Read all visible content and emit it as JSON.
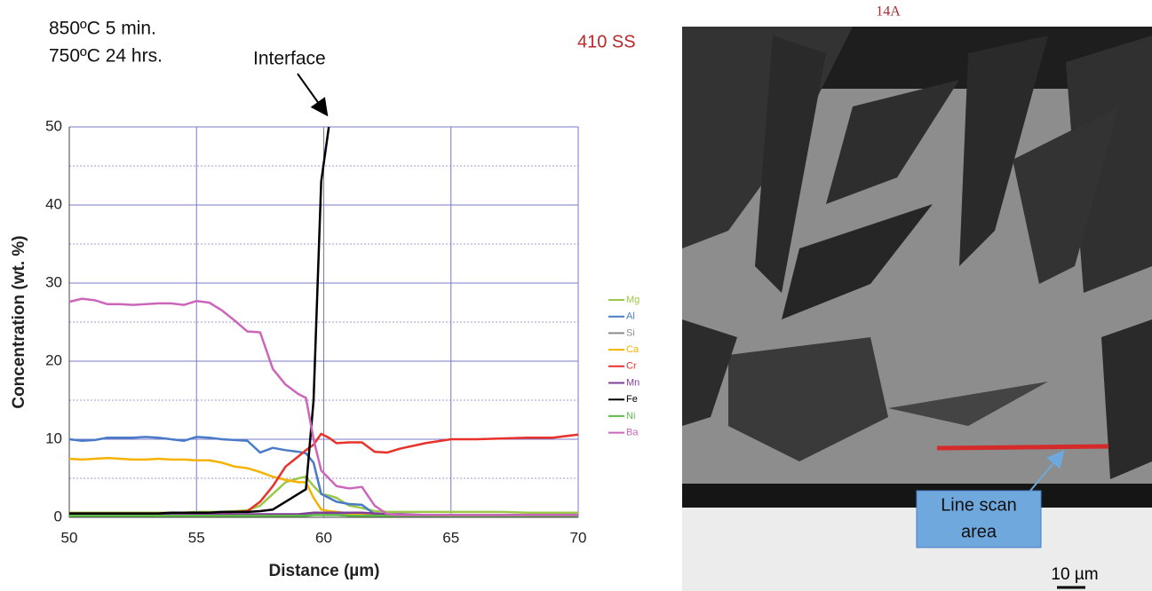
{
  "chart_data": {
    "type": "line",
    "annotations": [
      "850ºC 5 min.",
      "750ºC 24 hrs.",
      "Interface"
    ],
    "xlabel": "Distance (µm)",
    "ylabel": "Concentration (wt. %)",
    "x": [
      50,
      50.5,
      51,
      51.5,
      52,
      52.5,
      53,
      53.5,
      54,
      54.5,
      55,
      55.5,
      56,
      56.5,
      57,
      57.5,
      58,
      58.5,
      59,
      59.3,
      59.6,
      59.9,
      60.2,
      60.5,
      61,
      61.5,
      62,
      62.5,
      63,
      64,
      65,
      66,
      67,
      68,
      69,
      70
    ],
    "xlim": [
      50,
      70
    ],
    "xticks": [
      50,
      55,
      60,
      65,
      70
    ],
    "ylim": [
      0,
      50
    ],
    "yticks": [
      0,
      10,
      20,
      30,
      40,
      50
    ],
    "y_minor_grid": [
      5,
      15,
      25,
      35,
      45
    ],
    "grid": true,
    "grid_color": "#7878c8",
    "legend": "right",
    "series": [
      {
        "name": "Mg",
        "color": "#9cc84a",
        "values": [
          0.6,
          0.6,
          0.6,
          0.6,
          0.6,
          0.6,
          0.6,
          0.6,
          0.6,
          0.6,
          0.7,
          0.7,
          0.7,
          0.8,
          0.9,
          1.5,
          3,
          4.5,
          5,
          5.2,
          4,
          3,
          2.8,
          2.5,
          1.5,
          1.2,
          0.8,
          0.7,
          0.7,
          0.7,
          0.7,
          0.7,
          0.7,
          0.6,
          0.6,
          0.6
        ]
      },
      {
        "name": "Al",
        "color": "#4a7bc8",
        "values": [
          10,
          9.8,
          9.9,
          10.2,
          10.2,
          10.2,
          10.3,
          10.2,
          10,
          9.8,
          10.3,
          10.2,
          10,
          9.9,
          9.8,
          8.3,
          8.9,
          8.6,
          8.4,
          8.2,
          7,
          3,
          2.5,
          2,
          1.7,
          1.6,
          0.4,
          0.3,
          0.2,
          0.2,
          0.2,
          0.2,
          0.2,
          0.2,
          0.2,
          0.2
        ]
      },
      {
        "name": "Si",
        "color": "#8c8c8c",
        "values": [
          0.3,
          0.3,
          0.3,
          0.3,
          0.3,
          0.3,
          0.3,
          0.3,
          0.3,
          0.3,
          0.3,
          0.3,
          0.3,
          0.3,
          0.3,
          0.3,
          0.3,
          0.3,
          0.3,
          0.3,
          0.5,
          0.6,
          0.5,
          0.5,
          0.4,
          0.3,
          0.3,
          0.3,
          0.3,
          0.3,
          0.3,
          0.3,
          0.3,
          0.3,
          0.3,
          0.3
        ]
      },
      {
        "name": "Ca",
        "color": "#f7b200",
        "values": [
          7.5,
          7.4,
          7.5,
          7.6,
          7.5,
          7.4,
          7.4,
          7.5,
          7.4,
          7.4,
          7.3,
          7.3,
          7,
          6.5,
          6.3,
          5.8,
          5.2,
          4.8,
          4.5,
          4.5,
          2.5,
          1,
          0.8,
          0.7,
          0.5,
          0.4,
          0.3,
          0.2,
          0.2,
          0.2,
          0.2,
          0.2,
          0.2,
          0.2,
          0.2,
          0.2
        ]
      },
      {
        "name": "Cr",
        "color": "#e8312a",
        "values": [
          0.5,
          0.5,
          0.5,
          0.5,
          0.5,
          0.5,
          0.5,
          0.5,
          0.5,
          0.5,
          0.6,
          0.6,
          0.6,
          0.7,
          0.8,
          2,
          4,
          6.5,
          7.8,
          8.6,
          9.3,
          10.7,
          10.2,
          9.5,
          9.6,
          9.6,
          8.4,
          8.3,
          8.8,
          9.5,
          10,
          10,
          10.1,
          10.2,
          10.2,
          10.6
        ]
      },
      {
        "name": "Mn",
        "color": "#7f3f98",
        "values": [
          0.4,
          0.4,
          0.4,
          0.4,
          0.4,
          0.4,
          0.4,
          0.4,
          0.4,
          0.4,
          0.4,
          0.4,
          0.4,
          0.4,
          0.4,
          0.4,
          0.4,
          0.4,
          0.4,
          0.5,
          0.6,
          0.6,
          0.6,
          0.6,
          0.6,
          0.6,
          0.5,
          0.4,
          0.4,
          0.3,
          0.3,
          0.3,
          0.3,
          0.3,
          0.3,
          0.3
        ]
      },
      {
        "name": "Fe",
        "color": "#000000",
        "values": [
          0.5,
          0.5,
          0.5,
          0.5,
          0.5,
          0.5,
          0.5,
          0.5,
          0.6,
          0.6,
          0.6,
          0.6,
          0.7,
          0.7,
          0.7,
          0.8,
          1,
          2,
          3,
          3.6,
          15,
          43,
          50,
          null,
          null,
          null,
          null,
          null,
          null,
          null,
          null,
          null,
          null,
          null,
          null,
          null
        ]
      },
      {
        "name": "Ni",
        "color": "#5fba46",
        "values": [
          0.2,
          0.2,
          0.2,
          0.2,
          0.2,
          0.2,
          0.2,
          0.2,
          0.2,
          0.2,
          0.2,
          0.2,
          0.2,
          0.2,
          0.2,
          0.2,
          0.2,
          0.2,
          0.2,
          0.2,
          0.3,
          0.3,
          0.3,
          0.3,
          0.2,
          0.2,
          0.2,
          0.2,
          0.2,
          0.2,
          0.2,
          0.2,
          0.2,
          0.2,
          0.2,
          0.2
        ]
      },
      {
        "name": "Ba",
        "color": "#cc66bb",
        "values": [
          27.6,
          28,
          27.8,
          27.3,
          27.3,
          27.2,
          27.3,
          27.4,
          27.4,
          27.2,
          27.7,
          27.5,
          26.5,
          25.2,
          23.8,
          23.7,
          19,
          17,
          15.8,
          15.3,
          10,
          6,
          5,
          4,
          3.7,
          3.9,
          1.5,
          0.4,
          0.3,
          0.3,
          0.3,
          0.3,
          0.3,
          0.3,
          0.3,
          0.3
        ]
      }
    ]
  },
  "image": {
    "label": "14A",
    "material": "410 SS",
    "callout": [
      "Line scan",
      "area"
    ],
    "scale_bar": "10 µm"
  }
}
